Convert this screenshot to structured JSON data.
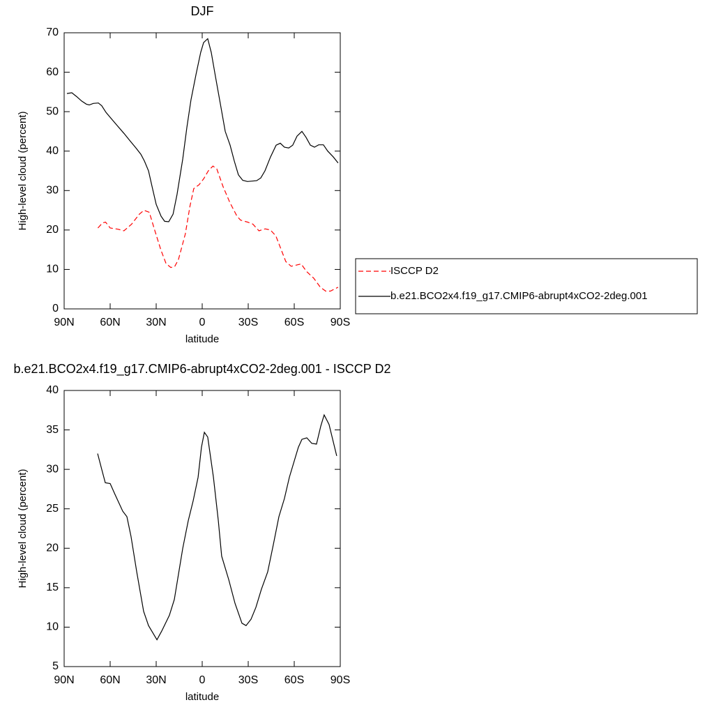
{
  "chart_data": [
    {
      "type": "line",
      "title": "DJF",
      "xlabel": "latitude",
      "ylabel": "High-level cloud (percent)",
      "xlim": [
        90,
        -90
      ],
      "xticks": [
        {
          "value": 90,
          "label": "90N"
        },
        {
          "value": 60,
          "label": "60N"
        },
        {
          "value": 30,
          "label": "30N"
        },
        0,
        {
          "value": -30,
          "label": "30S"
        },
        {
          "value": -60,
          "label": "60S"
        },
        {
          "value": -90,
          "label": "90S"
        }
      ],
      "ylim": [
        0,
        70
      ],
      "yticks": [
        0,
        10,
        20,
        30,
        40,
        50,
        60,
        70
      ],
      "legend": "right",
      "series": [
        {
          "name": "ISCCP D2",
          "color": "#ff0000",
          "dashed": true,
          "x": [
            68,
            65,
            63,
            60,
            55,
            51,
            46,
            41,
            38,
            34.5,
            31,
            27,
            23.6,
            20.5,
            18,
            15.5,
            11,
            8,
            5.5,
            2,
            -1,
            -4,
            -7,
            -9.5,
            -13.6,
            -18,
            -22.7,
            -25,
            -29.5,
            -33,
            -37,
            -41,
            -44.5,
            -48,
            -51,
            -54.5,
            -58,
            -64.5,
            -68,
            -72.7,
            -77,
            -80.5,
            -83.6,
            -88.6
          ],
          "values": [
            20.5,
            21.8,
            22,
            20.5,
            20.2,
            19.8,
            21.5,
            24,
            25,
            24.5,
            20,
            15,
            11.5,
            10.5,
            10.7,
            12.5,
            19,
            26,
            30.5,
            31.5,
            33,
            35,
            36.2,
            35.5,
            31,
            27,
            23.5,
            22.5,
            22,
            21.5,
            19.8,
            20.3,
            20,
            18.5,
            15.5,
            12,
            10.8,
            11.4,
            9.5,
            7.8,
            5.5,
            4.5,
            4.5,
            5.5
          ]
        },
        {
          "name": "b.e21.BCO2x4.f19_g17.CMIP6-abrupt4xCO2-2deg.001",
          "color": "#000000",
          "dashed": false,
          "x": [
            88.2,
            85,
            81.8,
            78.6,
            75.5,
            73.6,
            71,
            67.7,
            65.5,
            62.7,
            59,
            55.5,
            51,
            46.8,
            43.2,
            40,
            37.7,
            35,
            32.7,
            30,
            26.8,
            24.5,
            21.8,
            19,
            16.4,
            12.7,
            10,
            7.3,
            4,
            1,
            -0.9,
            -3.6,
            -5.9,
            -8.6,
            -11.8,
            -15,
            -18.2,
            -20.9,
            -23.6,
            -26.4,
            -29.5,
            -32.7,
            -35.5,
            -38.2,
            -40.9,
            -44.5,
            -48.2,
            -50.9,
            -53.6,
            -56.4,
            -59,
            -61.8,
            -65,
            -67.7,
            -70.5,
            -73.2,
            -75.9,
            -79,
            -81.8,
            -85.5,
            -88.6
          ],
          "values": [
            54.6,
            54.8,
            53.8,
            52.7,
            51.9,
            51.7,
            52.1,
            52.2,
            51.5,
            49.8,
            48.1,
            46.5,
            44.5,
            42.5,
            40.8,
            39.2,
            37.5,
            35,
            31,
            26.5,
            23.5,
            22.2,
            22.1,
            24,
            29,
            38,
            46,
            53,
            59.5,
            65,
            67.5,
            68.5,
            65,
            59,
            52,
            45,
            41.5,
            37.5,
            34,
            32.6,
            32.3,
            32.4,
            32.5,
            33.2,
            35,
            38.5,
            41.5,
            42,
            41,
            40.8,
            41.5,
            43.8,
            45,
            43.5,
            41.5,
            41,
            41.6,
            41.6,
            40,
            38.5,
            37
          ]
        }
      ]
    },
    {
      "type": "line",
      "title": "b.e21.BCO2x4.f19_g17.CMIP6-abrupt4xCO2-2deg.001 - ISCCP D2",
      "xlabel": "latitude",
      "ylabel": "High-level cloud (percent)",
      "xlim": [
        90,
        -90
      ],
      "xticks": [
        {
          "value": 90,
          "label": "90N"
        },
        {
          "value": 60,
          "label": "60N"
        },
        {
          "value": 30,
          "label": "30N"
        },
        0,
        {
          "value": -30,
          "label": "30S"
        },
        {
          "value": -60,
          "label": "60S"
        },
        {
          "value": -90,
          "label": "90S"
        }
      ],
      "ylim": [
        5,
        40
      ],
      "yticks": [
        5,
        10,
        15,
        20,
        25,
        30,
        35,
        40
      ],
      "color": "#000000",
      "x": [
        68.2,
        65.5,
        63.2,
        60,
        56.8,
        51.8,
        49.1,
        46.4,
        42.7,
        38.2,
        35,
        29.5,
        26.4,
        21.4,
        18.2,
        12.7,
        9.1,
        5.9,
        2.7,
        0.5,
        -1.4,
        -3.6,
        -7.3,
        -10.5,
        -12.7,
        -17.3,
        -21.4,
        -25.9,
        -28.6,
        -31.8,
        -35,
        -38.6,
        -42.7,
        -46.4,
        -50,
        -53.6,
        -56.8,
        -62.7,
        -65,
        -68.2,
        -71.4,
        -74.5,
        -77.3,
        -79.5,
        -82.7,
        -87.7
      ],
      "values": [
        32,
        30,
        28.3,
        28.2,
        26.8,
        24.7,
        24,
        21.5,
        17,
        12,
        10.2,
        8.4,
        9.5,
        11.5,
        13.5,
        20,
        23.5,
        26,
        29,
        32.8,
        34.7,
        34.1,
        29,
        23.5,
        19,
        16,
        13,
        10.5,
        10.2,
        11,
        12.5,
        14.8,
        17,
        20.5,
        24,
        26.3,
        29,
        32.8,
        33.8,
        34,
        33.3,
        33.2,
        35.5,
        36.9,
        35.7,
        31.7
      ]
    }
  ]
}
